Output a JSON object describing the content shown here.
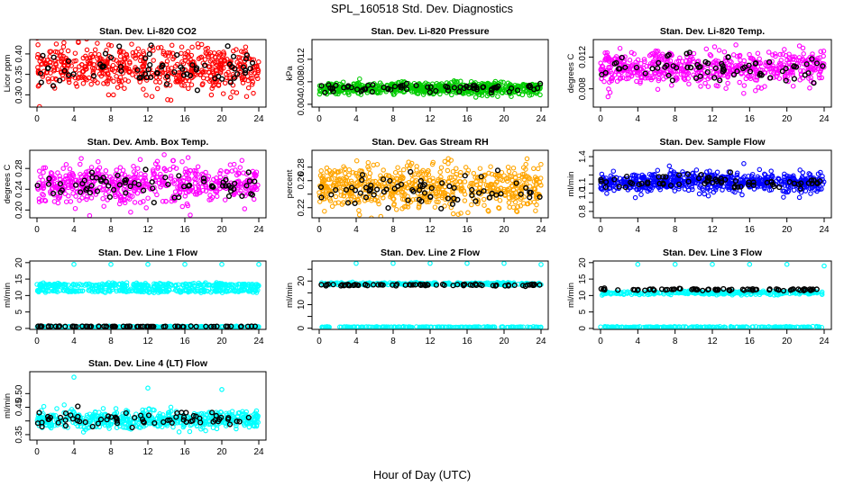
{
  "page": {
    "title": "SPL_160518  Std. Dev. Diagnostics",
    "xlabel": "Hour of Day (UTC)"
  },
  "chart_data": [
    {
      "type": "scatter",
      "title": "Stan. Dev. Li-820 CO2",
      "ylabel": "Licor ppm",
      "xlim": [
        0,
        24
      ],
      "ylim": [
        0.27,
        0.435
      ],
      "yticks": [
        0.3,
        0.35,
        0.4
      ],
      "ytick_labels": [
        "0.30",
        "0.35",
        "0.40"
      ],
      "xticks": [
        0,
        4,
        8,
        12,
        16,
        20,
        24
      ],
      "xtick_labels": [
        "0",
        "4",
        "8",
        "12",
        "16",
        "20",
        "24"
      ],
      "series": [
        {
          "color": "#ff0000",
          "center": 0.365,
          "spread": 0.03,
          "n": 560
        },
        {
          "color": "#000000",
          "center": 0.365,
          "spread": 0.025,
          "n": 70
        }
      ]
    },
    {
      "type": "scatter",
      "title": "Stan. Dev. Li-820 Pressure",
      "ylabel": "kPa",
      "xlim": [
        0,
        24
      ],
      "ylim": [
        0.0035,
        0.0155
      ],
      "yticks": [
        0.004,
        0.008,
        0.012
      ],
      "ytick_labels": [
        "0.004",
        "0.008",
        "0.012"
      ],
      "xticks": [
        0,
        4,
        8,
        12,
        16,
        20,
        24
      ],
      "xtick_labels": [
        "0",
        "4",
        "8",
        "12",
        "16",
        "20",
        "24"
      ],
      "series": [
        {
          "color": "#00cc00",
          "center": 0.0068,
          "spread": 0.0006,
          "n": 620
        },
        {
          "color": "#000000",
          "center": 0.0069,
          "spread": 0.0004,
          "n": 70
        }
      ]
    },
    {
      "type": "scatter",
      "title": "Stan. Dev. Li-820 Temp.",
      "ylabel": "degrees C",
      "xlim": [
        0,
        24
      ],
      "ylim": [
        0.0057,
        0.0142
      ],
      "yticks": [
        0.008,
        0.012
      ],
      "ytick_labels": [
        "0.008",
        "0.012"
      ],
      "xticks": [
        0,
        4,
        8,
        12,
        16,
        20,
        24
      ],
      "xtick_labels": [
        "0",
        "4",
        "8",
        "12",
        "16",
        "20",
        "24"
      ],
      "series": [
        {
          "color": "#ff00ff",
          "center": 0.0106,
          "spread": 0.0012,
          "n": 560
        },
        {
          "color": "#000000",
          "center": 0.0105,
          "spread": 0.0011,
          "n": 70
        }
      ]
    },
    {
      "type": "scatter",
      "title": "Stan. Dev. Amb. Box Temp.",
      "ylabel": "degrees C",
      "xlim": [
        0,
        24
      ],
      "ylim": [
        0.185,
        0.315
      ],
      "yticks": [
        0.2,
        0.24,
        0.28
      ],
      "ytick_labels": [
        "0.20",
        "0.24",
        "0.28"
      ],
      "xticks": [
        0,
        4,
        8,
        12,
        16,
        20,
        24
      ],
      "xtick_labels": [
        "0",
        "4",
        "8",
        "12",
        "16",
        "20",
        "24"
      ],
      "series": [
        {
          "color": "#ff00ff",
          "center": 0.25,
          "spread": 0.02,
          "n": 560
        },
        {
          "color": "#000000",
          "center": 0.248,
          "spread": 0.018,
          "n": 70
        }
      ]
    },
    {
      "type": "scatter",
      "title": "Stan. Dev. Gas Stream RH",
      "ylabel": "percent",
      "xlim": [
        0,
        24
      ],
      "ylim": [
        0.205,
        0.305
      ],
      "yticks": [
        0.22,
        0.24,
        0.26,
        0.28
      ],
      "ytick_labels": [
        "0.22",
        "",
        "0.26",
        "0.28"
      ],
      "xticks": [
        0,
        4,
        8,
        12,
        16,
        20,
        24
      ],
      "xtick_labels": [
        "0",
        "4",
        "8",
        "12",
        "16",
        "20",
        "24"
      ],
      "series": [
        {
          "color": "#ffa500",
          "center": 0.25,
          "spread": 0.018,
          "n": 640
        },
        {
          "color": "#000000",
          "center": 0.245,
          "spread": 0.015,
          "n": 70
        }
      ]
    },
    {
      "type": "scatter",
      "title": "Stan. Dev. Sample Flow",
      "ylabel": "ml/min",
      "xlim": [
        0,
        24
      ],
      "ylim": [
        0.73,
        1.47
      ],
      "yticks": [
        0.8,
        0.9,
        1.0,
        1.1,
        1.2,
        1.3,
        1.4
      ],
      "ytick_labels": [
        "0.8",
        "",
        "1.0",
        "1.1",
        "",
        "",
        "1.4"
      ],
      "xticks": [
        0,
        4,
        8,
        12,
        16,
        20,
        24
      ],
      "xtick_labels": [
        "0",
        "4",
        "8",
        "12",
        "16",
        "20",
        "24"
      ],
      "series": [
        {
          "color": "#0000ff",
          "center": 1.12,
          "spread": 0.06,
          "n": 640
        },
        {
          "color": "#000000",
          "center": 1.12,
          "spread": 0.05,
          "n": 70
        }
      ]
    },
    {
      "type": "scatter",
      "title": "Stan. Dev. Line 1 Flow",
      "ylabel": "ml/min",
      "xlim": [
        0,
        24
      ],
      "ylim": [
        -0.3,
        20.5
      ],
      "yticks": [
        0,
        5,
        10,
        15,
        20
      ],
      "ytick_labels": [
        "0",
        "5",
        "10",
        "15",
        "20"
      ],
      "xticks": [
        0,
        4,
        8,
        12,
        16,
        20,
        24
      ],
      "xtick_labels": [
        "0",
        "4",
        "8",
        "12",
        "16",
        "20",
        "24"
      ],
      "series": [
        {
          "color": "#00ffff",
          "center": 11.5,
          "spread": 0.3,
          "n": 260
        },
        {
          "color": "#00ffff",
          "center": 13.2,
          "spread": 0.3,
          "n": 260
        },
        {
          "color": "#00ffff",
          "center": 0.5,
          "spread": 0.1,
          "n": 200
        },
        {
          "color": "#000000",
          "center": 0.6,
          "spread": 0.05,
          "n": 70
        }
      ],
      "outliers": [
        {
          "x": 4,
          "y": 19.5
        },
        {
          "x": 8,
          "y": 19.5
        },
        {
          "x": 12,
          "y": 19.5
        },
        {
          "x": 16,
          "y": 19.5
        },
        {
          "x": 20,
          "y": 19.5
        },
        {
          "x": 24,
          "y": 19.5
        }
      ]
    },
    {
      "type": "scatter",
      "title": "Stan. Dev. Line 2 Flow",
      "ylabel": "ml/min",
      "xlim": [
        0,
        24
      ],
      "ylim": [
        -0.5,
        28.5
      ],
      "yticks": [
        0,
        5,
        10,
        15,
        20,
        25
      ],
      "ytick_labels": [
        "0",
        "",
        "10",
        "",
        "20",
        ""
      ],
      "xticks": [
        0,
        4,
        8,
        12,
        16,
        20,
        24
      ],
      "xtick_labels": [
        "0",
        "4",
        "8",
        "12",
        "16",
        "20",
        "24"
      ],
      "series": [
        {
          "color": "#00ffff",
          "center": 18.8,
          "spread": 0.3,
          "n": 300
        },
        {
          "color": "#00ffff",
          "center": 0.5,
          "spread": 0.1,
          "n": 200
        },
        {
          "color": "#000000",
          "center": 18.3,
          "spread": 0.2,
          "n": 70
        }
      ],
      "outliers": [
        {
          "x": 4,
          "y": 27.5
        },
        {
          "x": 8,
          "y": 27.5
        },
        {
          "x": 12,
          "y": 27.5
        },
        {
          "x": 16,
          "y": 27.5
        },
        {
          "x": 20,
          "y": 27.5
        },
        {
          "x": 24,
          "y": 27
        }
      ]
    },
    {
      "type": "scatter",
      "title": "Stan. Dev. Line 3 Flow",
      "ylabel": "ml/min",
      "xlim": [
        0,
        24
      ],
      "ylim": [
        -0.3,
        20.5
      ],
      "yticks": [
        0,
        5,
        10,
        15,
        20
      ],
      "ytick_labels": [
        "0",
        "5",
        "10",
        "15",
        "20"
      ],
      "xticks": [
        0,
        4,
        8,
        12,
        16,
        20,
        24
      ],
      "xtick_labels": [
        "0",
        "4",
        "8",
        "12",
        "16",
        "20",
        "24"
      ],
      "series": [
        {
          "color": "#00ffff",
          "center": 10.8,
          "spread": 0.3,
          "n": 300
        },
        {
          "color": "#00ffff",
          "center": 0.4,
          "spread": 0.1,
          "n": 200
        },
        {
          "color": "#000000",
          "center": 11.8,
          "spread": 0.2,
          "n": 70
        }
      ],
      "outliers": [
        {
          "x": 4,
          "y": 19.5
        },
        {
          "x": 8,
          "y": 19.5
        },
        {
          "x": 12,
          "y": 19.5
        },
        {
          "x": 16,
          "y": 19.5
        },
        {
          "x": 20,
          "y": 19.5
        },
        {
          "x": 24,
          "y": 19
        }
      ]
    },
    {
      "type": "scatter",
      "title": "Stan. Dev. Line 4 (LT) Flow",
      "ylabel": "ml/min",
      "xlim": [
        0,
        24
      ],
      "ylim": [
        0.33,
        0.58
      ],
      "yticks": [
        0.35,
        0.4,
        0.45,
        0.5
      ],
      "ytick_labels": [
        "0.35",
        "",
        "0.45",
        "0.50"
      ],
      "xticks": [
        0,
        4,
        8,
        12,
        16,
        20,
        24
      ],
      "xtick_labels": [
        "0",
        "4",
        "8",
        "12",
        "16",
        "20",
        "24"
      ],
      "series": [
        {
          "color": "#00ffff",
          "center": 0.405,
          "spread": 0.018,
          "n": 560
        },
        {
          "color": "#000000",
          "center": 0.405,
          "spread": 0.015,
          "n": 70
        }
      ],
      "outliers": [
        {
          "x": 4,
          "y": 0.56
        },
        {
          "x": 12,
          "y": 0.52
        },
        {
          "x": 20,
          "y": 0.515
        }
      ]
    }
  ]
}
